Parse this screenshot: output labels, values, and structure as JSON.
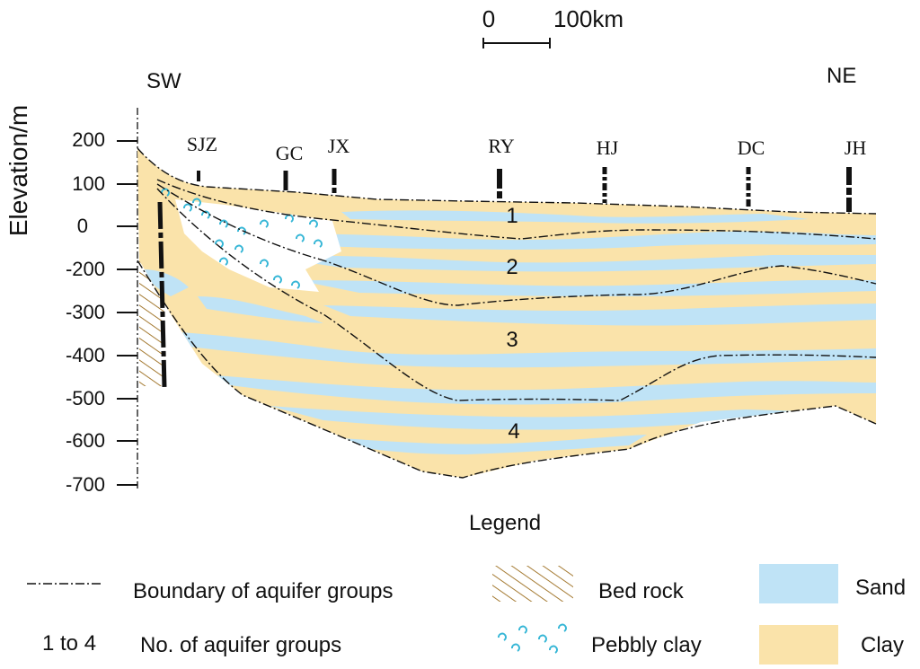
{
  "scale_bar": {
    "start_label": "0",
    "end_label": "100km"
  },
  "direction": {
    "left": "SW",
    "right": "NE"
  },
  "y_axis": {
    "label": "Elevation/m",
    "ticks": [
      "200",
      "100",
      "0",
      "-200",
      "-300",
      "-400",
      "-500",
      "-600",
      "-700"
    ]
  },
  "wells": [
    "SJZ",
    "GC",
    "JX",
    "RY",
    "HJ",
    "DC",
    "JH"
  ],
  "aquifer_labels": [
    "1",
    "2",
    "3",
    "4"
  ],
  "legend": {
    "title": "Legend",
    "boundary_label": "Boundary of aquifer groups",
    "number_key": "1 to 4",
    "number_label": "No. of aquifer groups",
    "bedrock_label": "Bed rock",
    "pebbly_label": "Pebbly clay",
    "sand_label": "Sand",
    "clay_label": "Clay"
  },
  "colors": {
    "clay": "#fae3aa",
    "sand": "#bfe3f6",
    "bedrock_hatch": "#a57b33",
    "pebble": "#35b6d6"
  }
}
